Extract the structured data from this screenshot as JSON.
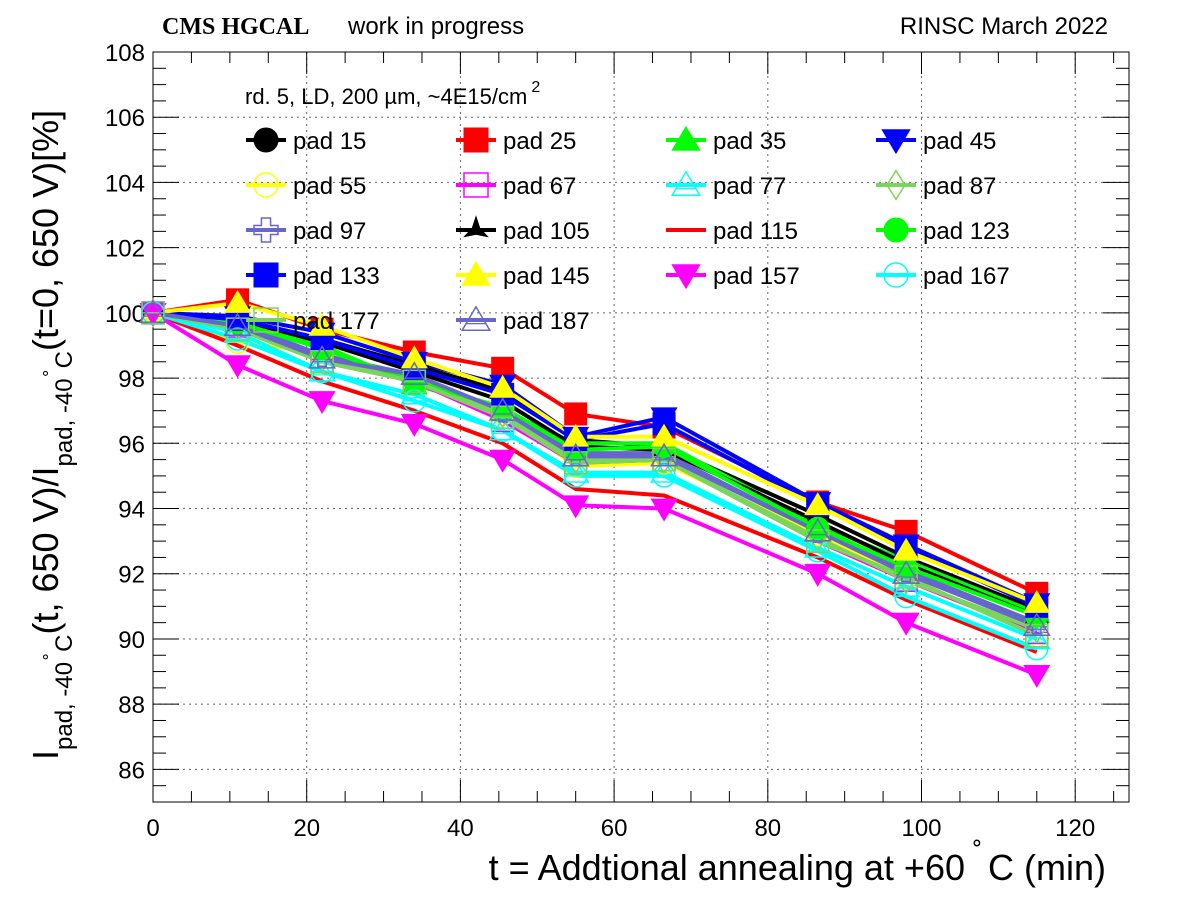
{
  "header": {
    "experiment": "CMS HGCAL",
    "status": "work in progress",
    "right": "RINSC March 2022"
  },
  "legend_header": {
    "text": "rd. 5, LD, 200 µm, ~4E15/cm",
    "superscript": "2"
  },
  "axis_labels": {
    "x_main": "t = Addtional annealing at +60",
    "x_deg": "∘",
    "x_tail": " C (min)",
    "y_I1": "I",
    "y_sub1": "pad, -40",
    "y_deg": "∘",
    "y_C": "C",
    "y_mid": "(t, 650 V)/I",
    "y_tail": "(t=0, 650 V)[%]"
  },
  "chart_data": {
    "type": "line",
    "xlim": [
      0,
      127
    ],
    "ylim": [
      85,
      108
    ],
    "x_ticks": [
      0,
      20,
      40,
      60,
      80,
      100,
      120
    ],
    "y_ticks": [
      86,
      88,
      90,
      92,
      94,
      96,
      98,
      100,
      102,
      104,
      106,
      108
    ],
    "grid": true,
    "legend_position": "top",
    "x": [
      0,
      11,
      22,
      34,
      45.5,
      55,
      66.5,
      86.5,
      98,
      115
    ],
    "series": [
      {
        "name": "pad 15",
        "color": "#000000",
        "marker": "circle",
        "filled": true,
        "values": [
          100,
          99.8,
          99.2,
          98.4,
          97.6,
          96.1,
          95.9,
          93.8,
          92.5,
          90.9
        ]
      },
      {
        "name": "pad 25",
        "color": "#ff0000",
        "marker": "square",
        "filled": true,
        "values": [
          100,
          100.4,
          99.5,
          98.8,
          98.3,
          96.9,
          96.5,
          94.2,
          93.3,
          91.4
        ]
      },
      {
        "name": "pad 35",
        "color": "#00ff00",
        "marker": "triangle-up",
        "filled": true,
        "values": [
          100,
          99.7,
          99.0,
          97.8,
          97.0,
          96.0,
          96.0,
          93.5,
          92.4,
          90.8
        ]
      },
      {
        "name": "pad 45",
        "color": "#0000ff",
        "marker": "triangle-down",
        "filled": true,
        "values": [
          100,
          99.9,
          99.4,
          98.5,
          97.8,
          96.2,
          96.8,
          94.2,
          92.9,
          91.1
        ]
      },
      {
        "name": "pad 55",
        "color": "#ffff00",
        "marker": "circle",
        "filled": false,
        "values": [
          100,
          99.1,
          98.8,
          98.0,
          96.9,
          95.3,
          95.4,
          93.2,
          91.9,
          90.1
        ]
      },
      {
        "name": "pad 67",
        "color": "#ff00ff",
        "marker": "square",
        "filled": false,
        "values": [
          100,
          99.6,
          98.5,
          97.9,
          96.7,
          95.4,
          95.5,
          93.0,
          91.8,
          90.2
        ]
      },
      {
        "name": "pad 77",
        "color": "#00ffff",
        "marker": "triangle-up",
        "filled": false,
        "values": [
          100,
          99.4,
          98.2,
          97.5,
          96.4,
          95.1,
          95.1,
          92.8,
          91.6,
          90.0
        ]
      },
      {
        "name": "pad 87",
        "color": "#7ad65a",
        "marker": "diamond",
        "filled": false,
        "values": [
          100,
          99.6,
          98.6,
          98.0,
          96.9,
          95.5,
          95.5,
          93.1,
          91.8,
          90.3
        ]
      },
      {
        "name": "pad 97",
        "color": "#6666cc",
        "marker": "cross",
        "filled": false,
        "values": [
          100,
          99.7,
          98.7,
          98.1,
          97.0,
          95.7,
          95.7,
          93.3,
          92.1,
          90.5
        ]
      },
      {
        "name": "pad 105",
        "color": "#000000",
        "marker": "star",
        "filled": true,
        "values": [
          100,
          99.8,
          99.1,
          98.2,
          97.3,
          95.9,
          95.8,
          93.6,
          92.3,
          90.7
        ]
      },
      {
        "name": "pad 115",
        "color": "#ff0000",
        "marker": "none",
        "filled": false,
        "values": [
          100,
          99.0,
          97.9,
          97.0,
          96.0,
          94.6,
          94.4,
          92.5,
          91.2,
          89.6
        ]
      },
      {
        "name": "pad 123",
        "color": "#00ff00",
        "marker": "circle",
        "filled": true,
        "values": [
          100,
          99.7,
          98.9,
          97.9,
          97.1,
          95.8,
          95.9,
          93.4,
          92.2,
          90.7
        ]
      },
      {
        "name": "pad 133",
        "color": "#0000ff",
        "marker": "square",
        "filled": true,
        "values": [
          100,
          99.8,
          99.2,
          98.3,
          97.5,
          96.1,
          96.6,
          94.1,
          92.8,
          91.0
        ]
      },
      {
        "name": "pad 145",
        "color": "#ffff00",
        "marker": "triangle-up",
        "filled": true,
        "values": [
          100,
          100.3,
          99.6,
          98.6,
          97.7,
          96.2,
          96.2,
          94.1,
          92.7,
          91.1
        ]
      },
      {
        "name": "pad 157",
        "color": "#ff00ff",
        "marker": "triangle-down",
        "filled": true,
        "values": [
          100,
          98.4,
          97.3,
          96.6,
          95.5,
          94.1,
          94.0,
          92.0,
          90.5,
          88.9
        ]
      },
      {
        "name": "pad 167",
        "color": "#00ffff",
        "marker": "circle",
        "filled": false,
        "values": [
          100,
          99.2,
          98.2,
          97.3,
          96.4,
          95.0,
          95.0,
          92.7,
          91.3,
          89.7
        ]
      },
      {
        "name": "pad 177",
        "color": "#7ad65a",
        "marker": "square",
        "filled": false,
        "values": [
          100,
          99.5,
          98.5,
          97.9,
          96.8,
          95.4,
          95.5,
          93.0,
          91.9,
          90.1
        ]
      },
      {
        "name": "pad 187",
        "color": "#6666cc",
        "marker": "triangle-up",
        "filled": false,
        "values": [
          100,
          99.6,
          98.6,
          98.1,
          97.0,
          95.6,
          95.6,
          93.3,
          92.0,
          90.4
        ]
      }
    ]
  }
}
